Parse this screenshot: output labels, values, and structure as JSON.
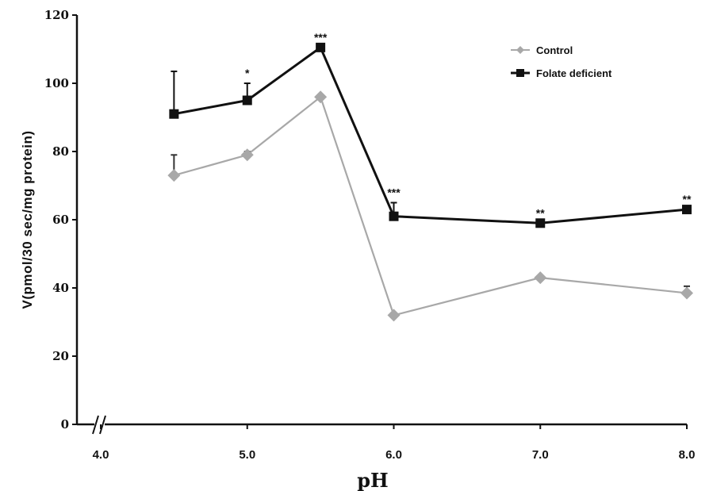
{
  "chart_data": {
    "type": "line",
    "xlabel": "pH",
    "ylabel": "V(pmol/30 sec/mg protein)",
    "xlim": [
      4.0,
      8.0
    ],
    "ylim": [
      0,
      120
    ],
    "x_ticks": [
      "4.0",
      "5.0",
      "6.0",
      "7.0",
      "8.0"
    ],
    "y_ticks": [
      "0",
      "20",
      "40",
      "60",
      "80",
      "100",
      "120"
    ],
    "axis_break": true,
    "legend_position": "top-right",
    "series": [
      {
        "name": "Control",
        "color": "#a8a8a8",
        "marker": "diamond",
        "x": [
          4.5,
          5.0,
          5.5,
          6.0,
          7.0,
          8.0
        ],
        "y": [
          73,
          79,
          96,
          32,
          43,
          38.5
        ],
        "error": [
          6,
          1,
          0,
          0,
          0,
          2
        ]
      },
      {
        "name": "Folate deficient",
        "color": "#111111",
        "marker": "square",
        "x": [
          4.5,
          5.0,
          5.5,
          6.0,
          7.0,
          8.0
        ],
        "y": [
          91,
          95,
          110.5,
          61,
          59,
          63
        ],
        "error": [
          12.5,
          5,
          0,
          4,
          0,
          0
        ]
      }
    ],
    "significance": [
      "",
      "*",
      "***",
      "***",
      "**",
      "**"
    ]
  }
}
